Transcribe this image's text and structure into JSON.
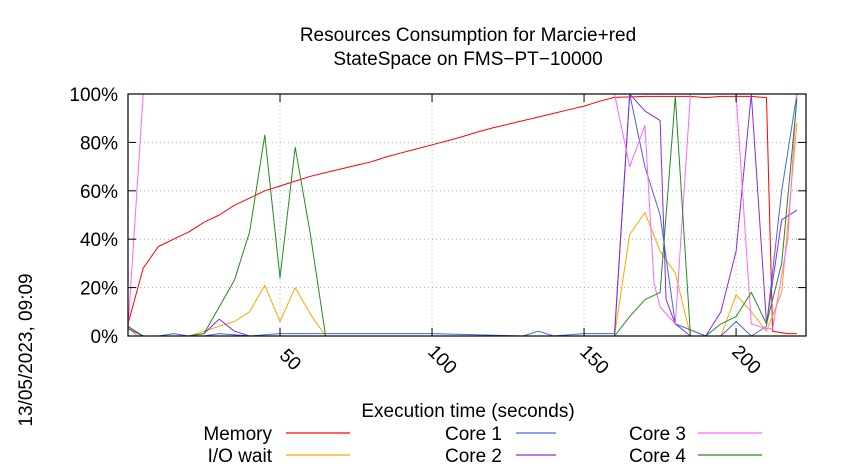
{
  "chart_data": {
    "type": "line",
    "title": [
      "Resources Consumption for Marcie+red",
      "StateSpace on FMS−PT−10000"
    ],
    "xlabel": "Execution time (seconds)",
    "ylabel": "",
    "side_label": "13/05/2023, 09:09",
    "xlim": [
      0,
      223
    ],
    "ylim": [
      0,
      100
    ],
    "x_ticks": [
      50,
      100,
      150,
      200
    ],
    "y_ticks": [
      0,
      20,
      40,
      60,
      80,
      100
    ],
    "y_tick_labels": [
      "0%",
      "20%",
      "40%",
      "60%",
      "80%",
      "100%"
    ],
    "grid": true,
    "legend_position": "bottom",
    "series": [
      {
        "name": "Memory",
        "color": "#ff0000",
        "x": [
          0,
          5,
          10,
          15,
          20,
          25,
          30,
          35,
          40,
          45,
          50,
          55,
          60,
          65,
          70,
          75,
          80,
          85,
          90,
          95,
          100,
          105,
          110,
          115,
          120,
          125,
          130,
          135,
          140,
          145,
          150,
          155,
          160,
          165,
          170,
          175,
          180,
          185,
          190,
          195,
          200,
          205,
          210,
          212,
          217,
          220
        ],
        "y": [
          5,
          28,
          37,
          40,
          43,
          47,
          50,
          54,
          57,
          60,
          62,
          64,
          66,
          67.5,
          69,
          70.5,
          72,
          74,
          75.7,
          77.3,
          79,
          80.6,
          82.4,
          84.3,
          86,
          87.5,
          89,
          90.5,
          92,
          93.5,
          95,
          97,
          98.6,
          98.8,
          99,
          99,
          99,
          99,
          98.5,
          99,
          99,
          99,
          98.5,
          2,
          1,
          1
        ]
      },
      {
        "name": "I/O wait",
        "color": "#ffa500",
        "x": [
          0,
          3,
          20,
          25,
          30,
          35,
          40,
          45,
          50,
          55,
          60,
          65,
          100,
          160,
          165,
          170,
          175,
          180,
          185,
          190,
          195,
          200,
          205,
          210,
          215,
          220
        ],
        "y": [
          4,
          0,
          0,
          2,
          4,
          6,
          10,
          21,
          6,
          20,
          9,
          0,
          0,
          0,
          42,
          51,
          35,
          26,
          0,
          0,
          0,
          17,
          10,
          2,
          18,
          88
        ]
      },
      {
        "name": "Core 1",
        "color": "#4169e1",
        "x": [
          0,
          5,
          10,
          15,
          20,
          25,
          30,
          40,
          50,
          60,
          100,
          130,
          135,
          140,
          150,
          160,
          165,
          170,
          175,
          180,
          190,
          195,
          200,
          205,
          210,
          215,
          220
        ],
        "y": [
          3,
          0,
          0,
          1,
          0,
          0,
          1,
          0,
          1,
          1,
          1,
          0,
          2,
          0,
          1,
          1,
          100,
          70,
          50,
          5,
          0,
          0,
          6,
          0,
          4,
          60,
          100
        ]
      },
      {
        "name": "Core 2",
        "color": "#8a2be2",
        "x": [
          0,
          5,
          20,
          25,
          30,
          35,
          40,
          60,
          100,
          160,
          165,
          170,
          175,
          177,
          180,
          185,
          190,
          195,
          200,
          205,
          210,
          215,
          220
        ],
        "y": [
          3,
          0,
          0,
          1,
          7,
          2,
          0,
          0,
          0,
          0,
          100,
          93,
          89,
          15,
          5,
          0,
          0,
          10,
          35,
          100,
          5,
          48,
          52
        ]
      },
      {
        "name": "Core 3",
        "color": "#ff66ff",
        "x": [
          0,
          5,
          10,
          50,
          100,
          150,
          160,
          165,
          170,
          173,
          175,
          180,
          185,
          190,
          195,
          200,
          205,
          210,
          212,
          217,
          220
        ],
        "y": [
          3,
          100,
          100,
          100,
          100,
          100,
          100,
          70,
          87,
          22,
          12,
          5,
          100,
          100,
          100,
          100,
          5,
          3,
          3,
          40,
          100
        ]
      },
      {
        "name": "Core 4",
        "color": "#228b22",
        "x": [
          0,
          5,
          10,
          20,
          25,
          30,
          35,
          40,
          45,
          50,
          55,
          60,
          65,
          100,
          160,
          165,
          170,
          175,
          180,
          185,
          190,
          195,
          200,
          205,
          210,
          215,
          220
        ],
        "y": [
          4,
          0,
          0,
          0,
          1,
          12,
          23,
          43,
          83,
          24,
          78,
          42,
          0,
          0,
          0,
          8,
          15,
          18,
          99,
          0,
          0,
          5,
          8,
          18,
          5,
          30,
          98
        ]
      }
    ]
  }
}
